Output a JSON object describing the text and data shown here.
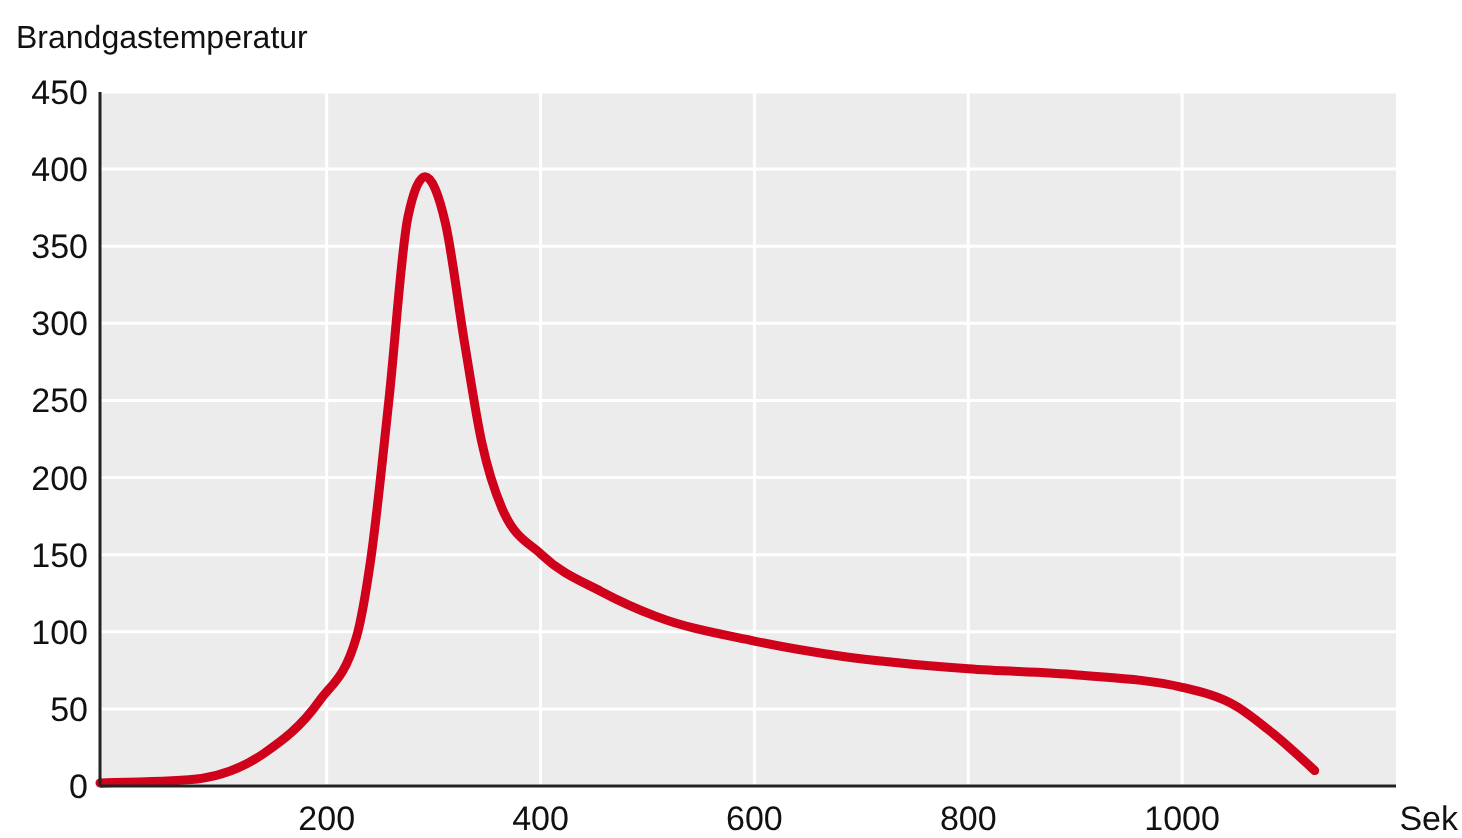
{
  "chart_data": {
    "type": "line",
    "xlabel": "Sek",
    "ylabel": "Brandgastemperatur",
    "xlim": [
      -12,
      1200
    ],
    "xticks": [
      200,
      400,
      600,
      800,
      1000
    ],
    "ylim": [
      0,
      450
    ],
    "yticks": [
      0,
      50,
      100,
      150,
      200,
      250,
      300,
      350,
      400,
      450
    ],
    "grid": true,
    "series": [
      {
        "color": "#d0021b",
        "x": [
          -12,
          71,
          141,
          193,
          228,
          241,
          258,
          276,
          292,
          311,
          329,
          345,
          364,
          401,
          457,
          508,
          600,
          683,
          800,
          902,
          1000,
          1050,
          1085,
          1124
        ],
        "values": [
          2,
          4,
          21,
          55,
          97,
          146,
          249,
          369,
          395,
          365,
          287,
          223,
          180,
          150,
          126,
          110,
          94,
          84,
          76,
          72,
          64,
          52,
          34,
          10
        ]
      }
    ]
  }
}
